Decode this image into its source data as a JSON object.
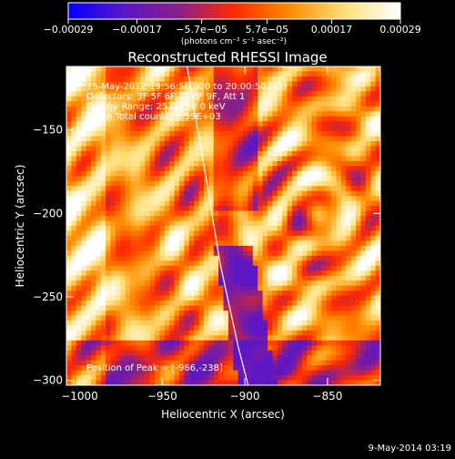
{
  "chart_data": {
    "type": "heatmap",
    "title": "Reconstructed RHESSI Image",
    "info_lines": [
      "25-May-2012 19:56:56.000 to 20:00:50.000",
      "Detectors: 3F 5F 6F 7F 8F 9F, Att 1",
      "Energy Range: 25.0 - 50.0 keV",
      "Clean     Total counts: 3.59E+03"
    ],
    "peak_label": "Position of Peak = [-966,-238]",
    "peak": {
      "x": -966,
      "y": -238
    },
    "xlabel": "Heliocentric X (arcsec)",
    "ylabel": "Heliocentric Y (arcsec)",
    "xlim": [
      -1008,
      -818
    ],
    "ylim": [
      -303,
      -112
    ],
    "xticks": [
      {
        "value": -1000,
        "label": "−1000"
      },
      {
        "value": -950,
        "label": "−950"
      },
      {
        "value": -900,
        "label": "−900"
      },
      {
        "value": -850,
        "label": "−850"
      }
    ],
    "yticks": [
      {
        "value": -150,
        "label": "−150"
      },
      {
        "value": -200,
        "label": "−200"
      },
      {
        "value": -250,
        "label": "−250"
      },
      {
        "value": -300,
        "label": "−300"
      }
    ],
    "colorbar": {
      "unit_label": "(photons cm⁻² s⁻¹ asec⁻²)",
      "range": [
        -0.00029,
        0.00029
      ],
      "ticks": [
        {
          "value": -0.00029,
          "label": "−0.00029"
        },
        {
          "value": -0.00017,
          "label": "−0.00017"
        },
        {
          "value": -5.7e-05,
          "label": "−5.7e−05"
        },
        {
          "value": 5.7e-05,
          "label": "5.7e−05"
        },
        {
          "value": 0.00017,
          "label": "0.00017"
        },
        {
          "value": 0.00029,
          "label": "0.00029"
        }
      ],
      "colors": [
        "#0000ff",
        "#5a16c8",
        "#8a1f8a",
        "#ff2a00",
        "#ff8c00",
        "#ffe07a",
        "#ffffff"
      ]
    },
    "limb_curve": [
      {
        "x": -935,
        "y": -112
      },
      {
        "x": -925,
        "y": -170
      },
      {
        "x": -915,
        "y": -230
      },
      {
        "x": -904,
        "y": -280
      },
      {
        "x": -898,
        "y": -303
      }
    ]
  },
  "footer": {
    "date": "9-May-2014 03:19"
  }
}
